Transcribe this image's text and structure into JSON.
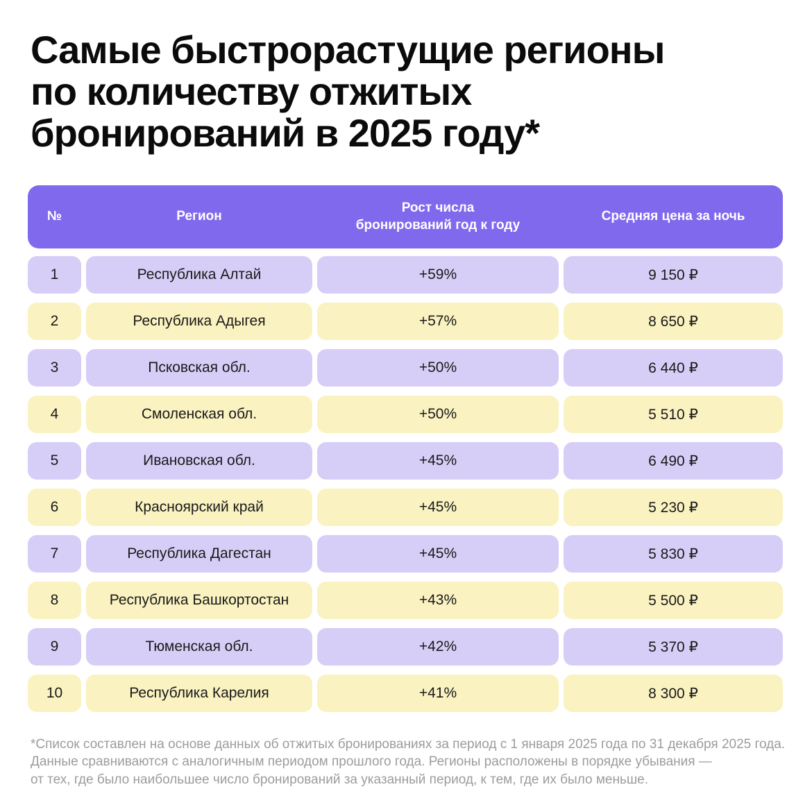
{
  "title": {
    "text": "Самые быстрорастущие регионы\nпо количеству отжитых\nбронирований в 2025 году*"
  },
  "table": {
    "columns": {
      "num": "№",
      "region": "Регион",
      "growth": "Рост числа\nбронирований год к году",
      "price": "Средняя цена за ночь"
    },
    "rows": [
      {
        "num": "1",
        "region": "Республика Алтай",
        "growth": "+59%",
        "price": "9 150 ₽"
      },
      {
        "num": "2",
        "region": "Республика Адыгея",
        "growth": "+57%",
        "price": "8 650 ₽"
      },
      {
        "num": "3",
        "region": "Псковская обл.",
        "growth": "+50%",
        "price": "6 440 ₽"
      },
      {
        "num": "4",
        "region": "Смоленская обл.",
        "growth": "+50%",
        "price": "5 510 ₽"
      },
      {
        "num": "5",
        "region": "Ивановская обл.",
        "growth": "+45%",
        "price": "6 490 ₽"
      },
      {
        "num": "6",
        "region": "Красноярский край",
        "growth": "+45%",
        "price": "5 230 ₽"
      },
      {
        "num": "7",
        "region": "Республика Дагестан",
        "growth": "+45%",
        "price": "5 830 ₽"
      },
      {
        "num": "8",
        "region": "Республика Башкортостан",
        "growth": "+43%",
        "price": "5 500 ₽"
      },
      {
        "num": "9",
        "region": "Тюменская обл.",
        "growth": "+42%",
        "price": "5 370 ₽"
      },
      {
        "num": "10",
        "region": "Республика Карелия",
        "growth": "+41%",
        "price": "8 300 ₽"
      }
    ]
  },
  "footnote": {
    "text": "*Список составлен на основе данных об отжитых бронированиях за период с 1 января 2025 года по 31 декабря 2025 года.\nДанные сравниваются с аналогичным периодом прошлого года. Регионы расположены в порядке убывания —\nот тех, где было наибольшее число бронирований за указанный период, к тем, где их было меньше."
  },
  "colors": {
    "header_bg": "#8169EE",
    "row_lavender": "#D7CEF7",
    "row_yellow": "#FAF2C0",
    "title_color": "#0B0B0B",
    "footnote_color": "#9C9C9C",
    "background": "#FFFFFF"
  },
  "chart_data": {
    "type": "table",
    "title": "Самые быстрорастущие регионы по количеству отжитых бронирований в 2025 году*",
    "columns": [
      "№",
      "Регион",
      "Рост числа бронирований год к году",
      "Средняя цена за ночь"
    ],
    "categories": [
      "Республика Алтай",
      "Республика Адыгея",
      "Псковская обл.",
      "Смоленская обл.",
      "Ивановская обл.",
      "Красноярский край",
      "Республика Дагестан",
      "Республика Башкортостан",
      "Тюменская обл.",
      "Республика Карелия"
    ],
    "series": [
      {
        "name": "Рост числа бронирований год к году, %",
        "values": [
          59,
          57,
          50,
          50,
          45,
          45,
          45,
          43,
          42,
          41
        ]
      },
      {
        "name": "Средняя цена за ночь, ₽",
        "values": [
          9150,
          8650,
          6440,
          5510,
          6490,
          5230,
          5830,
          5500,
          5370,
          8300
        ]
      }
    ],
    "layout_hints": {
      "row_striping": [
        "lavender",
        "yellow"
      ],
      "sort": "по убыванию роста"
    }
  }
}
